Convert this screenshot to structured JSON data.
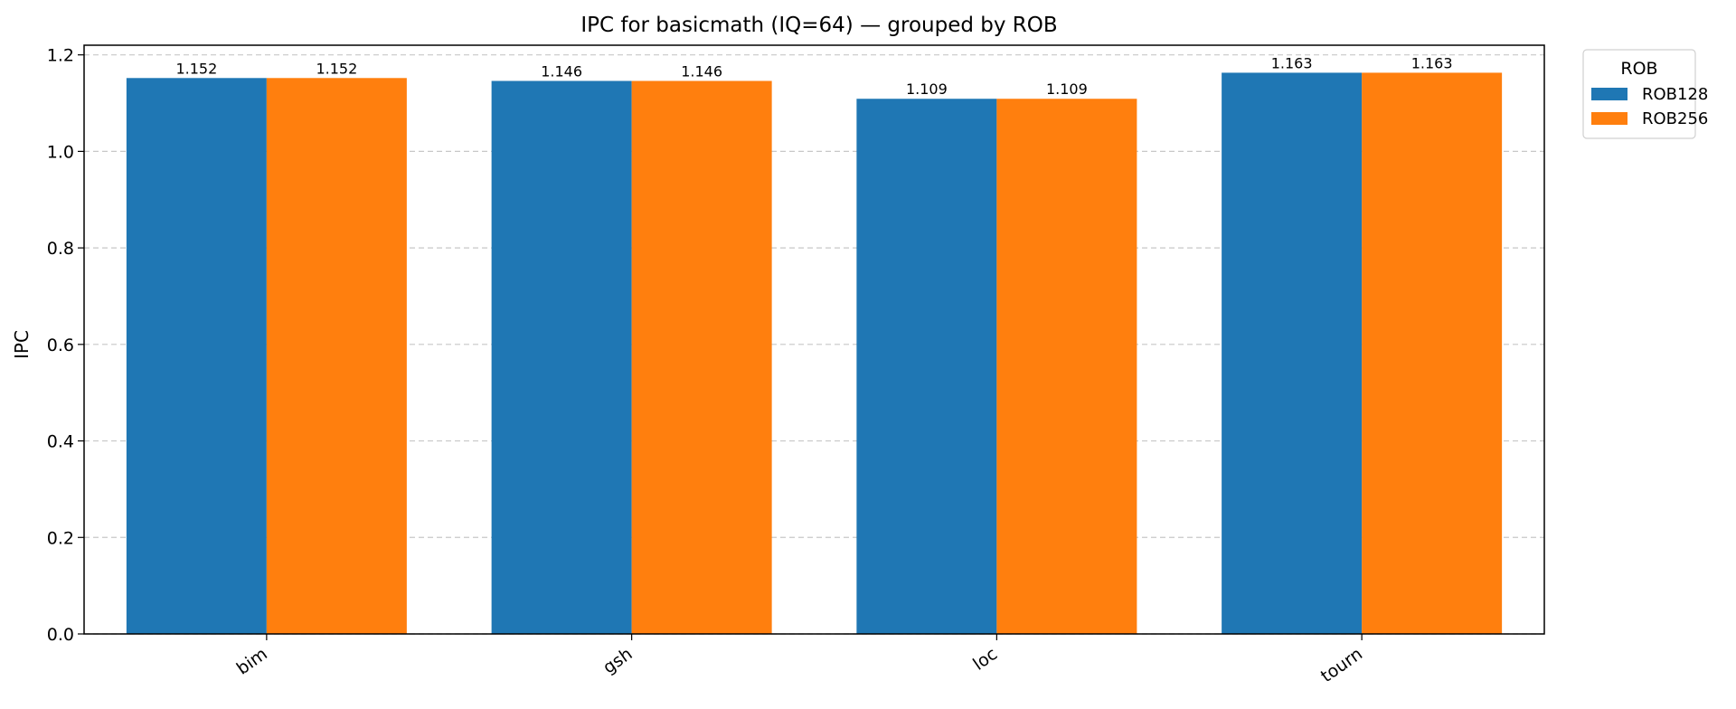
{
  "chart_data": {
    "type": "bar",
    "title": "IPC for basicmath (IQ=64) — grouped by ROB",
    "xlabel": "",
    "ylabel": "IPC",
    "categories": [
      "bim",
      "gsh",
      "loc",
      "tourn"
    ],
    "series": [
      {
        "name": "ROB128",
        "color": "#1f77b4",
        "values": [
          1.152,
          1.146,
          1.109,
          1.163
        ],
        "labels": [
          "1.152",
          "1.146",
          "1.109",
          "1.163"
        ]
      },
      {
        "name": "ROB256",
        "color": "#ff7f0e",
        "values": [
          1.152,
          1.146,
          1.109,
          1.163
        ],
        "labels": [
          "1.152",
          "1.146",
          "1.109",
          "1.163"
        ]
      }
    ],
    "ylim": [
      0,
      1.22
    ],
    "yticks": [
      0.0,
      0.2,
      0.4,
      0.6,
      0.8,
      1.0,
      1.2
    ],
    "ytick_labels": [
      "0.0",
      "0.2",
      "0.4",
      "0.6",
      "0.8",
      "1.0",
      "1.2"
    ],
    "grid": "y-dashed",
    "legend": {
      "title": "ROB",
      "placement": "outside-top-right"
    }
  }
}
